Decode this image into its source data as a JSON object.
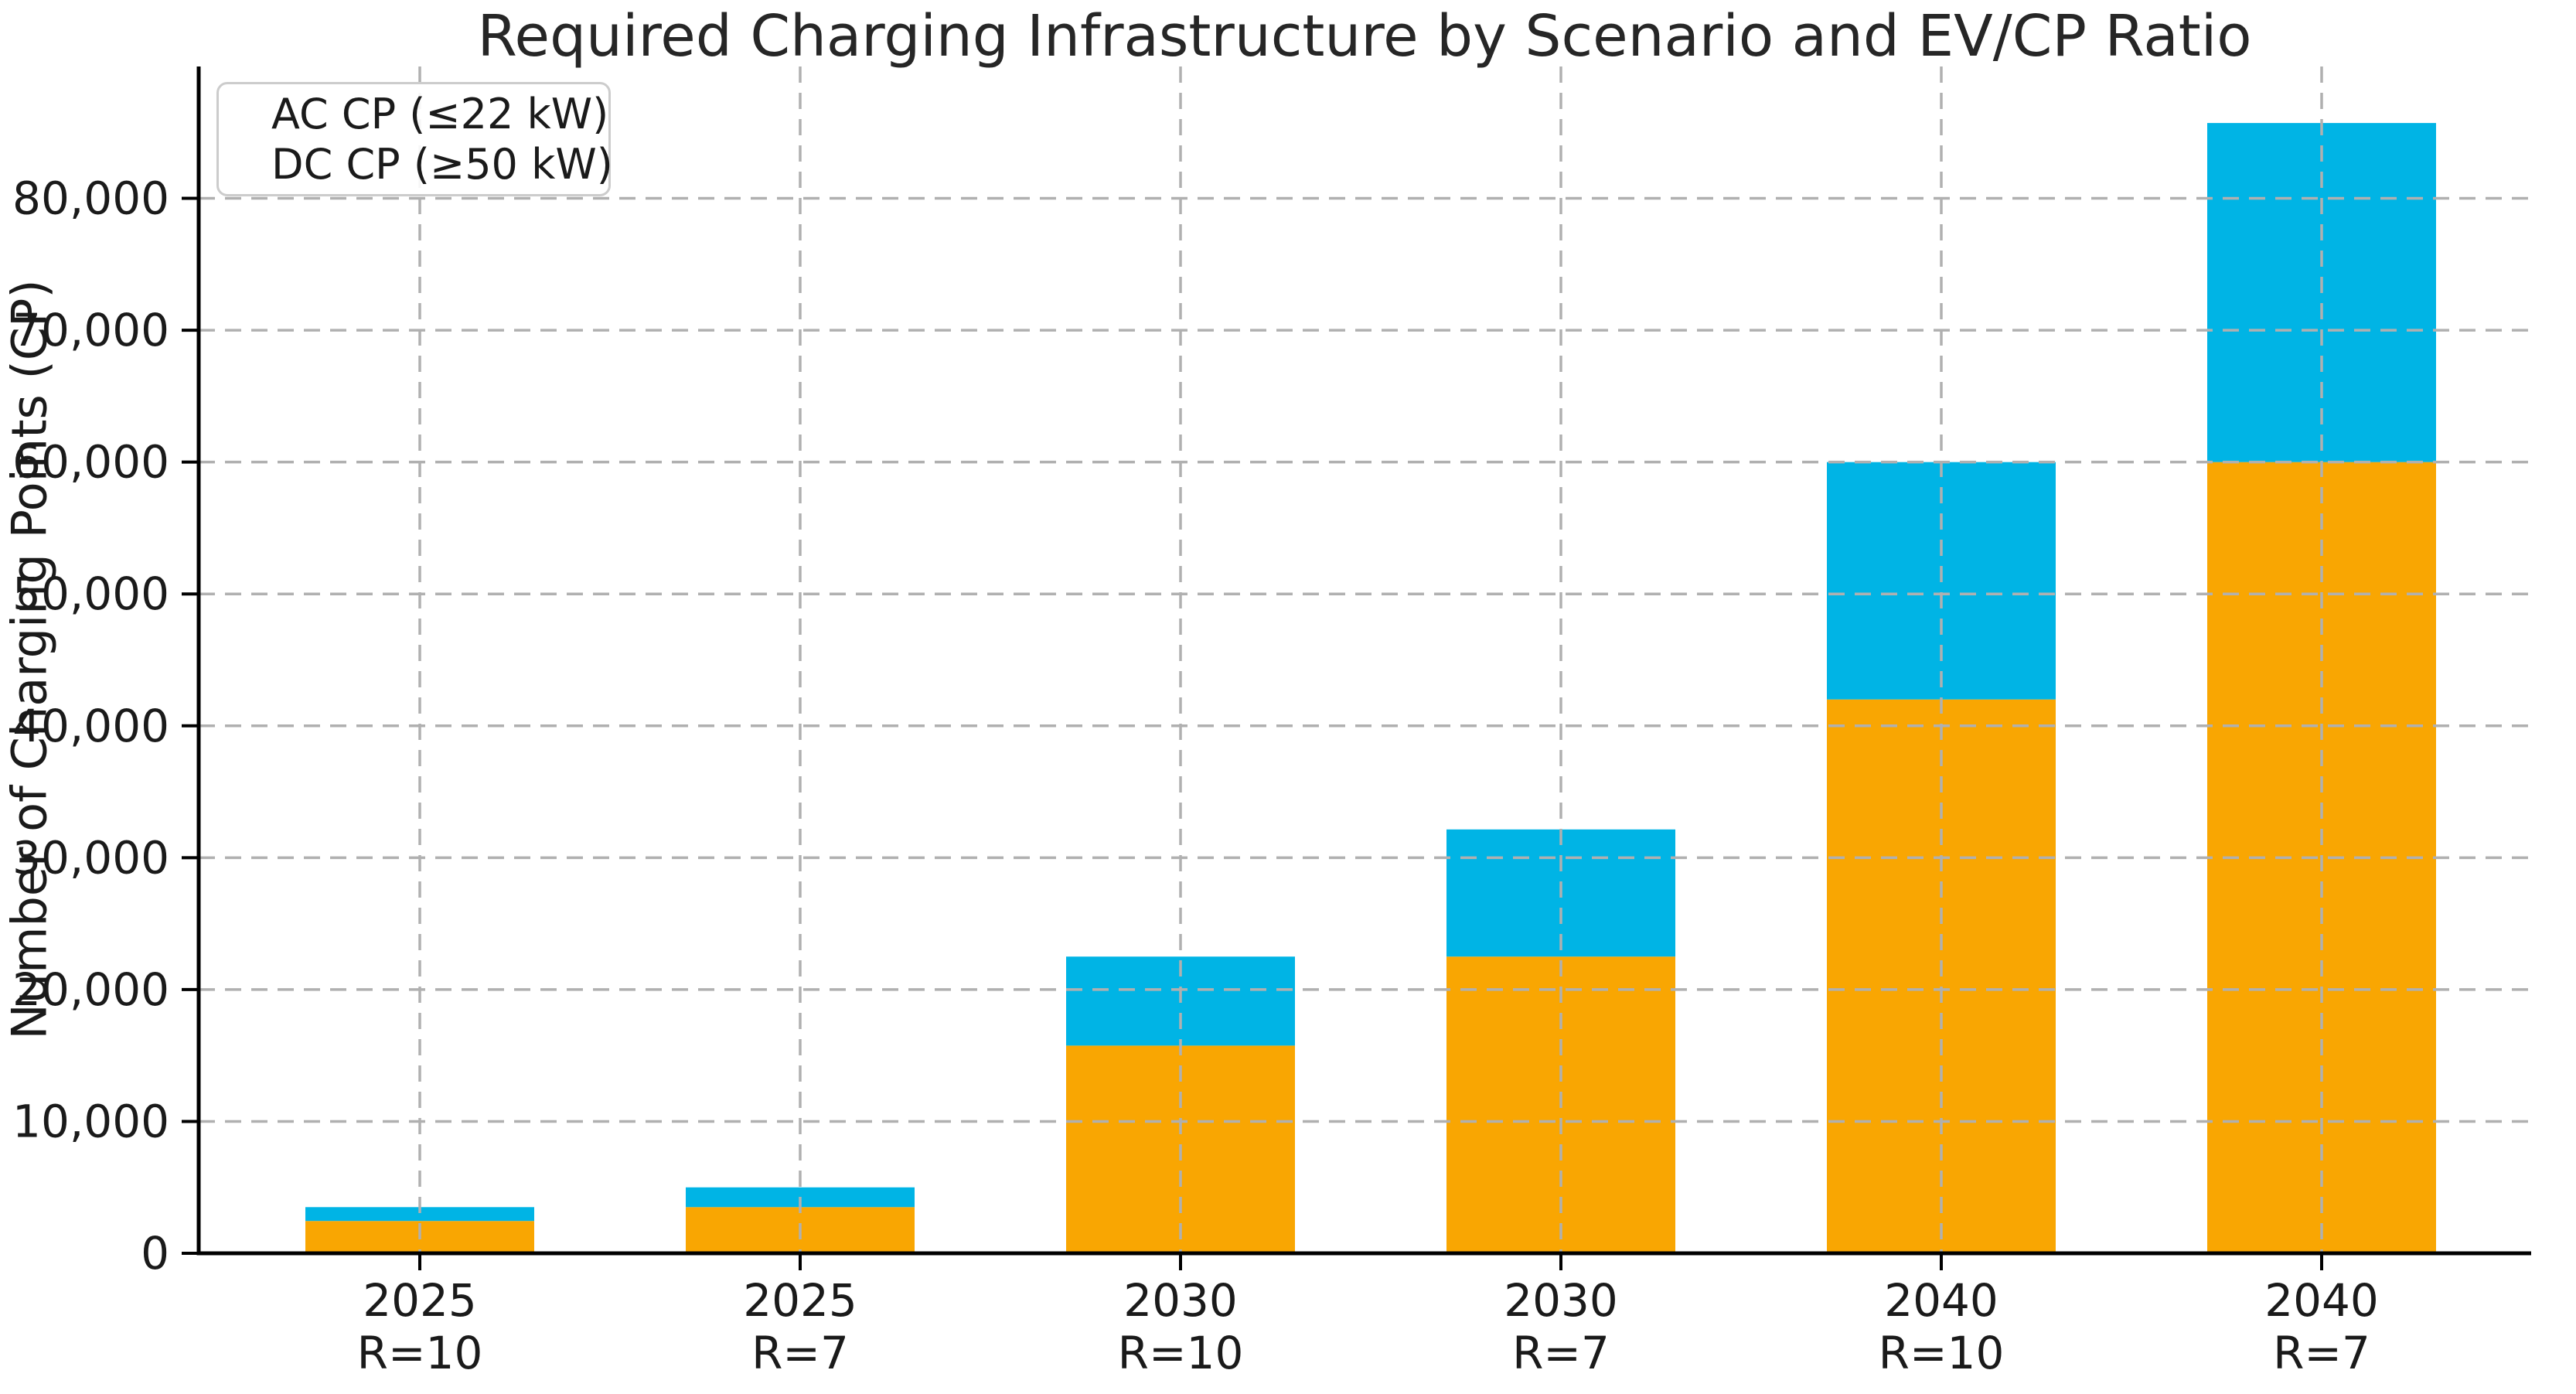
{
  "chart_data": {
    "type": "bar",
    "stacked": true,
    "title": "Required Charging Infrastructure by Scenario and EV/CP Ratio",
    "xlabel": "",
    "ylabel": "Number of Charging Points (CP)",
    "categories": [
      [
        "2025",
        "R=10"
      ],
      [
        "2025",
        "R=7"
      ],
      [
        "2030",
        "R=10"
      ],
      [
        "2030",
        "R=7"
      ],
      [
        "2040",
        "R=10"
      ],
      [
        "2040",
        "R=7"
      ]
    ],
    "series": [
      {
        "name": "AC CP (≤22 kW)",
        "color": "#F9A602",
        "values": [
          2450,
          3500,
          15750,
          22500,
          42000,
          60000
        ]
      },
      {
        "name": "DC CP (≥50 kW)",
        "color": "#00B4E5",
        "values": [
          1050,
          1500,
          6750,
          9643,
          18000,
          25714
        ]
      }
    ],
    "stack_totals": [
      3500,
      5000,
      22500,
      32143,
      60000,
      85714
    ],
    "ylim": [
      0,
      90000
    ],
    "yticks": [
      {
        "value": 0,
        "label": "0"
      },
      {
        "value": 10000,
        "label": "10,000"
      },
      {
        "value": 20000,
        "label": "20,000"
      },
      {
        "value": 30000,
        "label": "30,000"
      },
      {
        "value": 40000,
        "label": "40,000"
      },
      {
        "value": 50000,
        "label": "50,000"
      },
      {
        "value": 60000,
        "label": "60,000"
      },
      {
        "value": 70000,
        "label": "70,000"
      },
      {
        "value": 80000,
        "label": "80,000"
      }
    ],
    "grid": "dashed gray, horizontal and vertical, drawn on top of bars",
    "legend_position": "upper left",
    "colors": {
      "ac_bar": "#F9A602",
      "dc_bar": "#00B4E5",
      "gridline": "#b0b0b0",
      "axis": "#000000",
      "text": "#1a1a1a",
      "legend_border": "#cccccc"
    }
  }
}
